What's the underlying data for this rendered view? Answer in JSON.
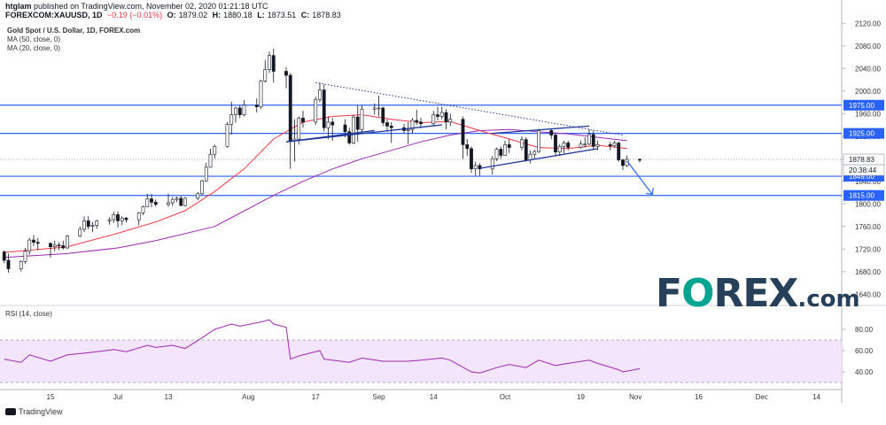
{
  "header": {
    "user": "htglam",
    "published": "published on TradingView.com, November 02, 2020 01:21:18 UTC",
    "symbol": "FOREXCOM:XAUUSD, 1D",
    "change": "−0.19 (−0.01%)",
    "open_label": "O:",
    "open": "1879.02",
    "high_label": "H:",
    "high": "1880.18",
    "low_label": "L:",
    "low": "1873.51",
    "close_label": "C:",
    "close": "1878.83"
  },
  "legend": {
    "title": "Gold Spot / U.S. Dollar, 1D, FOREX.com",
    "ma50": "MA (50, close, 0)",
    "ma20": "MA (20, close, 0)"
  },
  "rsi_label": "RSI (14, close)",
  "logo": {
    "text_before": "F",
    "text_o": "O",
    "text_after": "REX",
    "suffix": ".com"
  },
  "footer": "TradingView",
  "colors": {
    "up": "#ffffff",
    "down": "#131722",
    "ma20": "#f23645",
    "ma50": "#9c27b0",
    "hline": "#2962ff",
    "trend": "#1e3799",
    "rsi": "#9c27b0",
    "rsi_band": "#f3e5fb"
  },
  "chart_data": {
    "type": "candlestick",
    "price_axis": {
      "ticks": [
        1640,
        1680,
        1720,
        1760,
        1800,
        1840,
        1880,
        1920,
        1960,
        2000,
        2040,
        2080,
        2120
      ],
      "range": [
        1620,
        2130
      ]
    },
    "time_axis": {
      "labels": [
        "15",
        "Jul",
        "13",
        "Aug",
        "17",
        "Sep",
        "14",
        "Oct",
        "19",
        "Nov",
        "16",
        "Dec",
        "14"
      ]
    },
    "current_price": "1878.83",
    "countdown": "20:38:44",
    "horizontal_levels": [
      {
        "label": "1975.00",
        "value": 1975
      },
      {
        "label": "1925.00",
        "value": 1925
      },
      {
        "label": "1849.00",
        "value": 1849
      },
      {
        "label": "1815.00",
        "value": 1815
      }
    ],
    "trendlines": [
      {
        "kind": "dotted",
        "from": [
          "2020-08-17",
          2015
        ],
        "to": [
          "2020-10-29",
          1922
        ]
      },
      {
        "kind": "solid",
        "from": [
          "2020-08-10",
          1910
        ],
        "to": [
          "2020-09-16",
          1940
        ]
      },
      {
        "kind": "solid",
        "from": [
          "2020-08-10",
          1910
        ],
        "to": [
          "2020-08-31",
          1930
        ]
      },
      {
        "kind": "solid",
        "from": [
          "2020-09-25",
          1863
        ],
        "to": [
          "2020-10-23",
          1898
        ]
      },
      {
        "kind": "solid",
        "from": [
          "2020-09-28",
          1925
        ],
        "to": [
          "2020-10-21",
          1938
        ]
      }
    ],
    "projection_arrow": {
      "from": [
        "2020-10-30",
        1876
      ],
      "to": [
        "2020-11-05",
        1817
      ]
    },
    "candles": [
      [
        "2020-06-04",
        1715,
        1718,
        1695,
        1700
      ],
      [
        "2020-06-05",
        1700,
        1712,
        1678,
        1685
      ],
      [
        "2020-06-08",
        1685,
        1700,
        1680,
        1698
      ],
      [
        "2020-06-09",
        1698,
        1722,
        1694,
        1716
      ],
      [
        "2020-06-10",
        1716,
        1740,
        1710,
        1736
      ],
      [
        "2020-06-11",
        1736,
        1745,
        1725,
        1732
      ],
      [
        "2020-06-12",
        1732,
        1740,
        1718,
        1730
      ],
      [
        "2020-06-15",
        1730,
        1732,
        1705,
        1724
      ],
      [
        "2020-06-16",
        1724,
        1735,
        1716,
        1727
      ],
      [
        "2020-06-17",
        1727,
        1732,
        1718,
        1726
      ],
      [
        "2020-06-18",
        1726,
        1735,
        1719,
        1722
      ],
      [
        "2020-06-19",
        1722,
        1745,
        1720,
        1743
      ],
      [
        "2020-06-22",
        1743,
        1760,
        1741,
        1755
      ],
      [
        "2020-06-23",
        1755,
        1778,
        1750,
        1770
      ],
      [
        "2020-06-24",
        1770,
        1778,
        1755,
        1760
      ],
      [
        "2020-06-25",
        1760,
        1768,
        1750,
        1762
      ],
      [
        "2020-06-26",
        1762,
        1772,
        1756,
        1770
      ],
      [
        "2020-06-29",
        1770,
        1776,
        1763,
        1772
      ],
      [
        "2020-06-30",
        1772,
        1786,
        1766,
        1781
      ],
      [
        "2020-07-01",
        1781,
        1787,
        1758,
        1770
      ],
      [
        "2020-07-02",
        1770,
        1778,
        1762,
        1775
      ],
      [
        "2020-07-03",
        1775,
        1777,
        1767,
        1772
      ],
      [
        "2020-07-06",
        1772,
        1786,
        1762,
        1784
      ],
      [
        "2020-07-07",
        1784,
        1797,
        1780,
        1795
      ],
      [
        "2020-07-08",
        1795,
        1818,
        1795,
        1809
      ],
      [
        "2020-07-09",
        1809,
        1818,
        1794,
        1803
      ],
      [
        "2020-07-10",
        1803,
        1808,
        1795,
        1799
      ],
      [
        "2020-07-13",
        1799,
        1818,
        1795,
        1802
      ],
      [
        "2020-07-14",
        1802,
        1812,
        1796,
        1808
      ],
      [
        "2020-07-15",
        1808,
        1813,
        1803,
        1810
      ],
      [
        "2020-07-16",
        1810,
        1814,
        1796,
        1797
      ],
      [
        "2020-07-17",
        1797,
        1812,
        1796,
        1810
      ],
      [
        "2020-07-20",
        1810,
        1821,
        1807,
        1818
      ],
      [
        "2020-07-21",
        1818,
        1843,
        1816,
        1841
      ],
      [
        "2020-07-22",
        1841,
        1873,
        1839,
        1865
      ],
      [
        "2020-07-23",
        1865,
        1898,
        1864,
        1888
      ],
      [
        "2020-07-24",
        1888,
        1905,
        1880,
        1902
      ],
      [
        "2020-07-27",
        1902,
        1945,
        1900,
        1941
      ],
      [
        "2020-07-28",
        1941,
        1981,
        1923,
        1958
      ],
      [
        "2020-07-29",
        1958,
        1972,
        1944,
        1970
      ],
      [
        "2020-07-30",
        1970,
        1975,
        1952,
        1958
      ],
      [
        "2020-07-31",
        1958,
        1984,
        1955,
        1975
      ],
      [
        "2020-08-03",
        1975,
        1987,
        1962,
        1972
      ],
      [
        "2020-08-04",
        1972,
        2020,
        1968,
        2018
      ],
      [
        "2020-08-05",
        2018,
        2055,
        2015,
        2038
      ],
      [
        "2020-08-06",
        2038,
        2070,
        2032,
        2063
      ],
      [
        "2020-08-07",
        2063,
        2075,
        2015,
        2035
      ],
      [
        "2020-08-10",
        2035,
        2042,
        2005,
        2028
      ],
      [
        "2020-08-11",
        2028,
        2032,
        1862,
        1912
      ],
      [
        "2020-08-12",
        1912,
        1950,
        1875,
        1915
      ],
      [
        "2020-08-13",
        1915,
        1955,
        1905,
        1952
      ],
      [
        "2020-08-14",
        1952,
        1965,
        1935,
        1945
      ],
      [
        "2020-08-17",
        1945,
        1990,
        1940,
        1985
      ],
      [
        "2020-08-18",
        1985,
        2015,
        1980,
        2002
      ],
      [
        "2020-08-19",
        2002,
        2012,
        1928,
        1935
      ],
      [
        "2020-08-20",
        1935,
        1955,
        1915,
        1945
      ],
      [
        "2020-08-21",
        1945,
        1952,
        1912,
        1940
      ],
      [
        "2020-08-24",
        1940,
        1950,
        1918,
        1928
      ],
      [
        "2020-08-25",
        1928,
        1935,
        1905,
        1908
      ],
      [
        "2020-08-26",
        1908,
        1958,
        1906,
        1954
      ],
      [
        "2020-08-27",
        1954,
        1975,
        1910,
        1932
      ],
      [
        "2020-08-28",
        1932,
        1975,
        1925,
        1968
      ],
      [
        "2020-08-31",
        1968,
        1978,
        1958,
        1970
      ],
      [
        "2020-09-01",
        1970,
        1992,
        1955,
        1970
      ],
      [
        "2020-09-02",
        1970,
        1972,
        1938,
        1944
      ],
      [
        "2020-09-03",
        1944,
        1950,
        1928,
        1938
      ],
      [
        "2020-09-04",
        1938,
        1945,
        1908,
        1935
      ],
      [
        "2020-09-07",
        1935,
        1942,
        1925,
        1930
      ],
      [
        "2020-09-08",
        1930,
        1945,
        1906,
        1932
      ],
      [
        "2020-09-09",
        1932,
        1952,
        1925,
        1948
      ],
      [
        "2020-09-10",
        1948,
        1967,
        1940,
        1945
      ],
      [
        "2020-09-11",
        1945,
        1953,
        1934,
        1942
      ],
      [
        "2020-09-14",
        1942,
        1965,
        1938,
        1958
      ],
      [
        "2020-09-15",
        1958,
        1972,
        1948,
        1955
      ],
      [
        "2020-09-16",
        1955,
        1972,
        1950,
        1962
      ],
      [
        "2020-09-17",
        1962,
        1968,
        1932,
        1945
      ],
      [
        "2020-09-18",
        1945,
        1960,
        1938,
        1950
      ],
      [
        "2020-09-21",
        1950,
        1955,
        1880,
        1905
      ],
      [
        "2020-09-22",
        1905,
        1915,
        1885,
        1898
      ],
      [
        "2020-09-23",
        1898,
        1902,
        1855,
        1862
      ],
      [
        "2020-09-24",
        1862,
        1875,
        1850,
        1868
      ],
      [
        "2020-09-25",
        1868,
        1872,
        1850,
        1862
      ],
      [
        "2020-09-28",
        1862,
        1885,
        1852,
        1880
      ],
      [
        "2020-09-29",
        1880,
        1900,
        1876,
        1897
      ],
      [
        "2020-09-30",
        1897,
        1902,
        1880,
        1886
      ],
      [
        "2020-10-01",
        1886,
        1912,
        1885,
        1905
      ],
      [
        "2020-10-02",
        1905,
        1915,
        1890,
        1900
      ],
      [
        "2020-10-05",
        1900,
        1920,
        1895,
        1914
      ],
      [
        "2020-10-06",
        1914,
        1918,
        1875,
        1878
      ],
      [
        "2020-10-07",
        1878,
        1895,
        1872,
        1888
      ],
      [
        "2020-10-08",
        1888,
        1896,
        1880,
        1893
      ],
      [
        "2020-10-09",
        1893,
        1933,
        1890,
        1930
      ],
      [
        "2020-10-12",
        1930,
        1932,
        1915,
        1922
      ],
      [
        "2020-10-13",
        1922,
        1925,
        1885,
        1892
      ],
      [
        "2020-10-14",
        1892,
        1906,
        1885,
        1902
      ],
      [
        "2020-10-15",
        1902,
        1912,
        1890,
        1908
      ],
      [
        "2020-10-16",
        1908,
        1912,
        1895,
        1900
      ],
      [
        "2020-10-19",
        1900,
        1912,
        1898,
        1906
      ],
      [
        "2020-10-20",
        1906,
        1918,
        1900,
        1906
      ],
      [
        "2020-10-21",
        1906,
        1932,
        1904,
        1923
      ],
      [
        "2020-10-22",
        1923,
        1930,
        1895,
        1902
      ],
      [
        "2020-10-23",
        1902,
        1912,
        1895,
        1905
      ],
      [
        "2020-10-26",
        1905,
        1910,
        1895,
        1903
      ],
      [
        "2020-10-27",
        1903,
        1912,
        1900,
        1908
      ],
      [
        "2020-10-28",
        1908,
        1910,
        1875,
        1878
      ],
      [
        "2020-10-29",
        1878,
        1880,
        1860,
        1868
      ],
      [
        "2020-10-30",
        1868,
        1886,
        1865,
        1879
      ],
      [
        "2020-11-02",
        1879.02,
        1880.18,
        1873.51,
        1878.83
      ]
    ],
    "ma20": [
      [
        "2020-06-04",
        1714
      ],
      [
        "2020-06-19",
        1724
      ],
      [
        "2020-07-01",
        1748
      ],
      [
        "2020-07-10",
        1768
      ],
      [
        "2020-07-17",
        1788
      ],
      [
        "2020-07-24",
        1822
      ],
      [
        "2020-07-31",
        1862
      ],
      [
        "2020-08-07",
        1915
      ],
      [
        "2020-08-14",
        1945
      ],
      [
        "2020-08-21",
        1955
      ],
      [
        "2020-08-28",
        1958
      ],
      [
        "2020-09-04",
        1950
      ],
      [
        "2020-09-11",
        1944
      ],
      [
        "2020-09-18",
        1946
      ],
      [
        "2020-09-25",
        1930
      ],
      [
        "2020-10-02",
        1915
      ],
      [
        "2020-10-09",
        1900
      ],
      [
        "2020-10-16",
        1898
      ],
      [
        "2020-10-23",
        1904
      ],
      [
        "2020-10-30",
        1898
      ]
    ],
    "ma50": [
      [
        "2020-06-04",
        1705
      ],
      [
        "2020-06-19",
        1712
      ],
      [
        "2020-07-01",
        1722
      ],
      [
        "2020-07-10",
        1735
      ],
      [
        "2020-07-24",
        1760
      ],
      [
        "2020-08-07",
        1815
      ],
      [
        "2020-08-14",
        1840
      ],
      [
        "2020-08-21",
        1862
      ],
      [
        "2020-08-28",
        1880
      ],
      [
        "2020-09-04",
        1895
      ],
      [
        "2020-09-11",
        1910
      ],
      [
        "2020-09-18",
        1922
      ],
      [
        "2020-09-25",
        1930
      ],
      [
        "2020-10-02",
        1932
      ],
      [
        "2020-10-09",
        1928
      ],
      [
        "2020-10-16",
        1924
      ],
      [
        "2020-10-23",
        1918
      ],
      [
        "2020-10-30",
        1912
      ]
    ],
    "rsi": {
      "ticks": [
        40,
        60,
        80
      ],
      "band": [
        30,
        70
      ],
      "range": [
        25,
        90
      ],
      "values": [
        [
          "2020-06-04",
          52
        ],
        [
          "2020-06-08",
          49
        ],
        [
          "2020-06-10",
          56
        ],
        [
          "2020-06-15",
          50
        ],
        [
          "2020-06-19",
          56
        ],
        [
          "2020-06-24",
          58
        ],
        [
          "2020-06-30",
          61
        ],
        [
          "2020-07-03",
          59
        ],
        [
          "2020-07-08",
          65
        ],
        [
          "2020-07-10",
          63
        ],
        [
          "2020-07-14",
          65
        ],
        [
          "2020-07-17",
          62
        ],
        [
          "2020-07-21",
          72
        ],
        [
          "2020-07-24",
          80
        ],
        [
          "2020-07-28",
          85
        ],
        [
          "2020-07-30",
          83
        ],
        [
          "2020-08-04",
          87
        ],
        [
          "2020-08-06",
          89
        ],
        [
          "2020-08-07",
          85
        ],
        [
          "2020-08-10",
          82
        ],
        [
          "2020-08-11",
          52
        ],
        [
          "2020-08-13",
          55
        ],
        [
          "2020-08-18",
          60
        ],
        [
          "2020-08-19",
          52
        ],
        [
          "2020-08-25",
          49
        ],
        [
          "2020-08-28",
          53
        ],
        [
          "2020-09-02",
          50
        ],
        [
          "2020-09-08",
          50
        ],
        [
          "2020-09-11",
          51
        ],
        [
          "2020-09-16",
          53
        ],
        [
          "2020-09-18",
          51
        ],
        [
          "2020-09-23",
          40
        ],
        [
          "2020-09-25",
          39
        ],
        [
          "2020-09-29",
          44
        ],
        [
          "2020-10-02",
          47
        ],
        [
          "2020-10-06",
          44
        ],
        [
          "2020-10-09",
          51
        ],
        [
          "2020-10-13",
          46
        ],
        [
          "2020-10-16",
          48
        ],
        [
          "2020-10-21",
          51
        ],
        [
          "2020-10-23",
          48
        ],
        [
          "2020-10-28",
          42
        ],
        [
          "2020-10-29",
          40
        ],
        [
          "2020-11-02",
          43
        ]
      ]
    }
  }
}
